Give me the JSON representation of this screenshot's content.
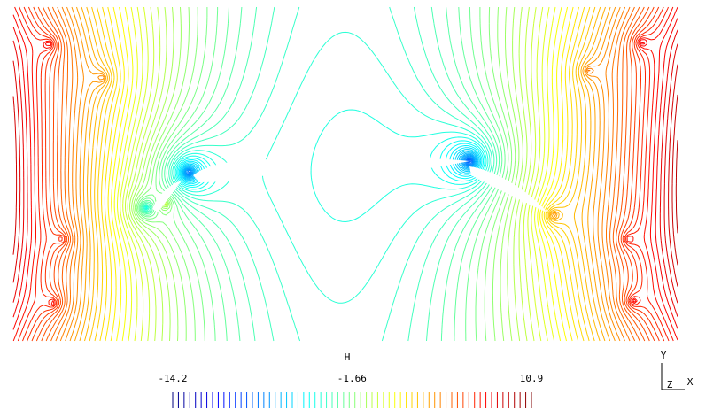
{
  "chart_data": {
    "type": "contour",
    "colorbar_title": "H",
    "clim": [
      -14.2,
      10.9
    ],
    "cticks": [
      -14.2,
      -1.66,
      10.9
    ],
    "axes_labels": [
      "Y",
      "Z",
      "X"
    ]
  }
}
